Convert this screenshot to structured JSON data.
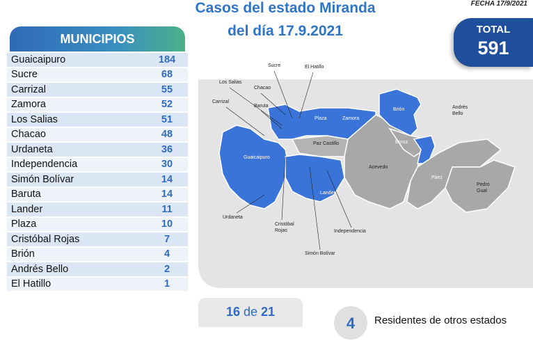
{
  "header": {
    "title_line1": "Casos del estado Miranda",
    "title_line2": "del día 17.9.2021",
    "date": "FECHA 17/9/2021",
    "total_label": "TOTAL",
    "total_value": 591
  },
  "table": {
    "heading": "MUNICIPIOS",
    "rows": [
      [
        "Guaicaipuro",
        184
      ],
      [
        "Sucre",
        68
      ],
      [
        "Carrizal",
        55
      ],
      [
        "Zamora",
        52
      ],
      [
        "Los Salias",
        51
      ],
      [
        "Chacao",
        48
      ],
      [
        "Urdaneta",
        36
      ],
      [
        "Independencia",
        30
      ],
      [
        "Simón Bolívar",
        14
      ],
      [
        "Baruta",
        14
      ],
      [
        "Lander",
        11
      ],
      [
        "Plaza",
        10
      ],
      [
        "Cristóbal Rojas",
        7
      ],
      [
        "Brión",
        4
      ],
      [
        "Andrés Bello",
        2
      ],
      [
        "El Hatillo",
        1
      ]
    ]
  },
  "map": {
    "labels": [
      {
        "lines": [
          "Sucre"
        ]
      },
      {
        "lines": [
          "El Hatillo"
        ]
      },
      {
        "lines": [
          "Los Salias"
        ]
      },
      {
        "lines": [
          "Chacao"
        ]
      },
      {
        "lines": [
          "Carrizal"
        ]
      },
      {
        "lines": [
          "Baruta"
        ]
      },
      {
        "lines": [
          "Plaza"
        ]
      },
      {
        "lines": [
          "Zamora"
        ]
      },
      {
        "lines": [
          "Brión"
        ]
      },
      {
        "lines": [
          "Andrés",
          "Bello"
        ]
      },
      {
        "lines": [
          "Paz Castillo"
        ]
      },
      {
        "lines": [
          "Guaicaipuro"
        ]
      },
      {
        "lines": [
          "Buroz"
        ]
      },
      {
        "lines": [
          "Acevedo"
        ]
      },
      {
        "lines": [
          "Páez"
        ]
      },
      {
        "lines": [
          "Pedro",
          "Gual"
        ]
      },
      {
        "lines": [
          "Lander"
        ]
      },
      {
        "lines": [
          "Urdaneta"
        ]
      },
      {
        "lines": [
          "Cristóbal",
          "Rojas"
        ]
      },
      {
        "lines": [
          "Simón Bolívar"
        ]
      },
      {
        "lines": [
          "Independencia"
        ]
      }
    ]
  },
  "footer": {
    "page_current": 16,
    "page_of": "de",
    "page_total": 21,
    "other_states_count": 4,
    "other_states_label": "Residentes de otros estados"
  }
}
